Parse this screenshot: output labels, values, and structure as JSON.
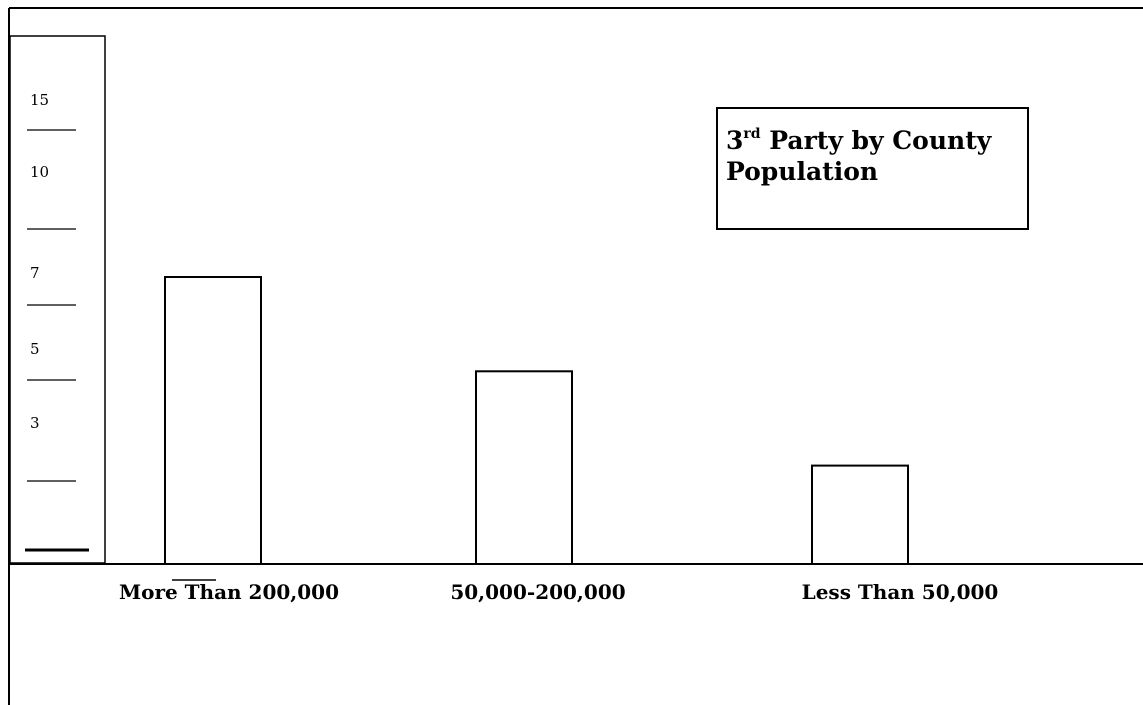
{
  "chart_data": {
    "type": "bar",
    "title": {
      "prefix": "3",
      "superscript": "rd",
      "rest": " Party by County Population"
    },
    "categories": [
      "More Than 200,000",
      "50,000-200,000",
      "Less Than 50,000"
    ],
    "values": [
      7,
      4.7,
      2.4
    ],
    "y_tick_labels": [
      "15",
      "10",
      "7",
      "5",
      "3"
    ],
    "bar_fill": "#ffffff",
    "stroke_color": "#000000",
    "grid": false,
    "legend": "none"
  }
}
